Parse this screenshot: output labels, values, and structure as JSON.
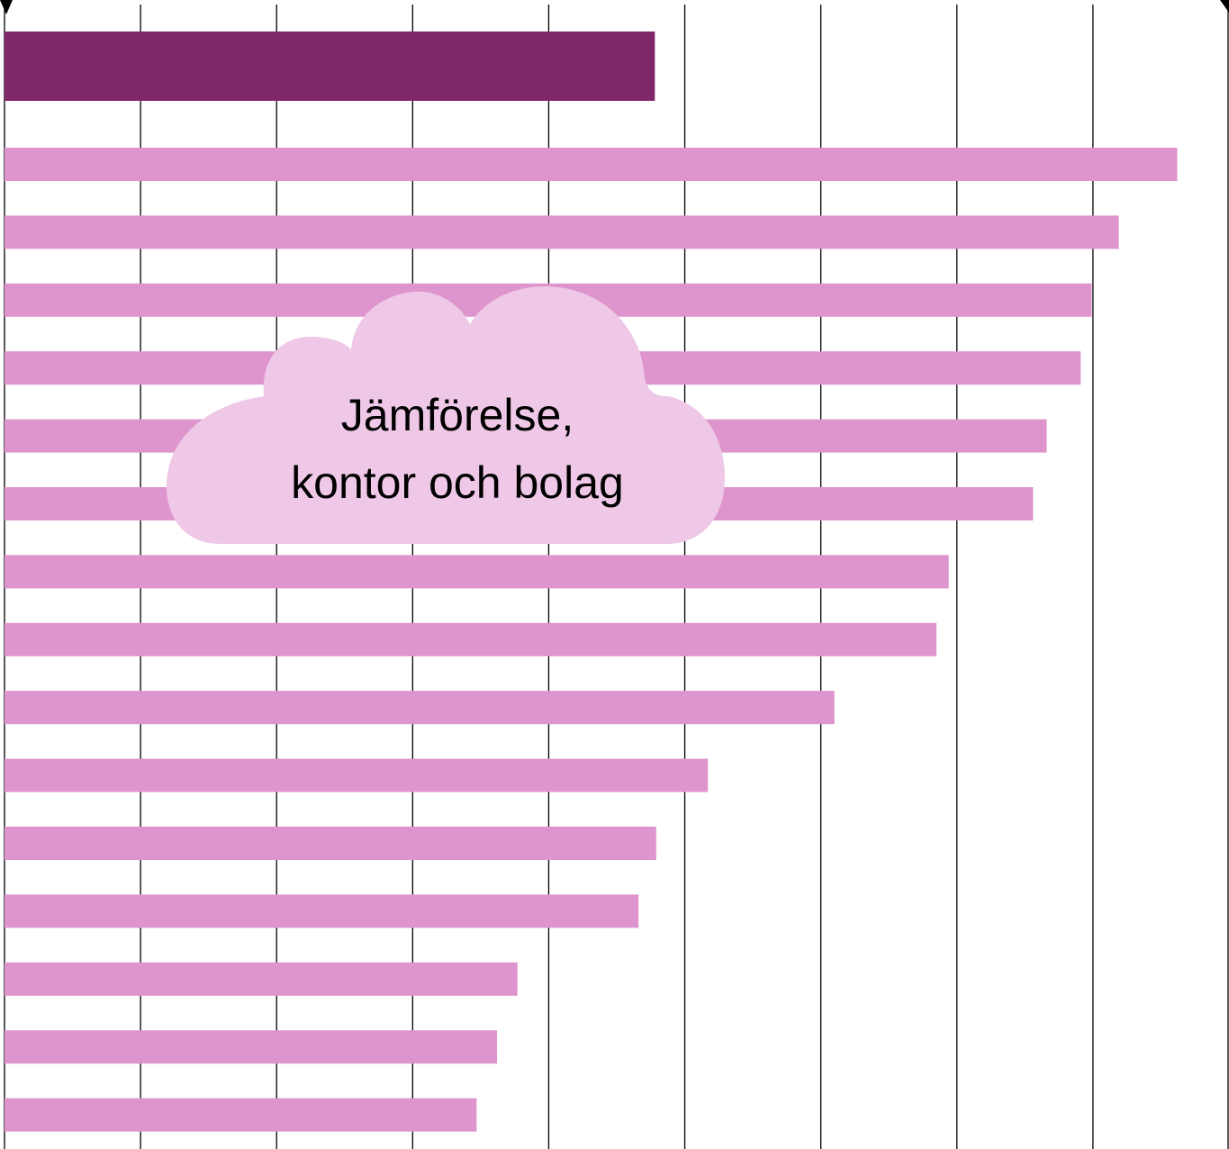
{
  "chart_data": {
    "type": "barh",
    "values": [
      4.78,
      8.62,
      8.19,
      7.99,
      7.91,
      7.66,
      7.56,
      6.94,
      6.85,
      6.1,
      5.17,
      4.79,
      4.66,
      3.77,
      3.62,
      3.47
    ],
    "colors": [
      "#7f2769",
      "#de95cd",
      "#de95cd",
      "#de95cd",
      "#de95cd",
      "#de95cd",
      "#de95cd",
      "#de95cd",
      "#de95cd",
      "#de95cd",
      "#de95cd",
      "#de95cd",
      "#de95cd",
      "#de95cd",
      "#de95cd",
      "#de95cd"
    ],
    "xlim": [
      0,
      9
    ],
    "xticks": [
      0,
      1,
      2,
      3,
      4,
      5,
      6,
      7,
      8,
      9
    ],
    "grid": true,
    "annotation": [
      "Jämförelse,",
      "kontor och bolag"
    ]
  }
}
